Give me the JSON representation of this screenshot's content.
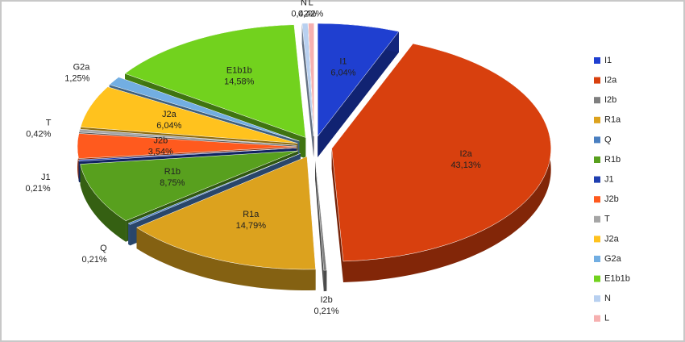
{
  "chart_data": {
    "type": "pie",
    "categories": [
      "I1",
      "I2a",
      "I2b",
      "R1a",
      "Q",
      "R1b",
      "J1",
      "J2b",
      "T",
      "J2a",
      "G2a",
      "E1b1b",
      "N",
      "L"
    ],
    "values": [
      6.04,
      43.13,
      0.21,
      14.79,
      0.21,
      8.75,
      0.21,
      3.54,
      0.42,
      6.04,
      1.25,
      14.58,
      0.42,
      0.42
    ],
    "value_labels": [
      "6,04%",
      "43,13%",
      "0,21%",
      "14,79%",
      "0,21%",
      "8,75%",
      "0,21%",
      "3,54%",
      "0,42%",
      "6,04%",
      "1,25%",
      "14,58%",
      "0,42%",
      "0,42%"
    ],
    "colors": [
      "#1f3fd0",
      "#d8400e",
      "#7f7f7f",
      "#dca21e",
      "#4a7fc0",
      "#58a01e",
      "#1f3fb0",
      "#ff5a1e",
      "#a5a5a5",
      "#ffc21e",
      "#72aee2",
      "#72d21e",
      "#b8d0f0",
      "#f6b0b0"
    ],
    "legend": "right"
  }
}
